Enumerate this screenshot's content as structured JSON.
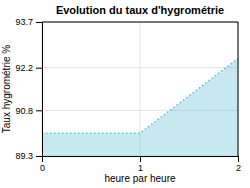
{
  "chart_data": {
    "type": "area",
    "title": "Evolution du taux d'hygrométrie",
    "x_label": "heure par heure",
    "y_label": "Taux hygrométrie %",
    "x": [
      0,
      1,
      2
    ],
    "values": [
      90.05,
      90.05,
      92.5
    ],
    "color": "#5bbdd4",
    "line_style": "dotted",
    "xlim": [
      0,
      2
    ],
    "ylim": [
      89.3,
      93.7
    ],
    "xticks": [
      0,
      1,
      2
    ],
    "yticks": [
      89.3,
      90.8,
      92.2,
      93.7
    ],
    "grid": true
  }
}
